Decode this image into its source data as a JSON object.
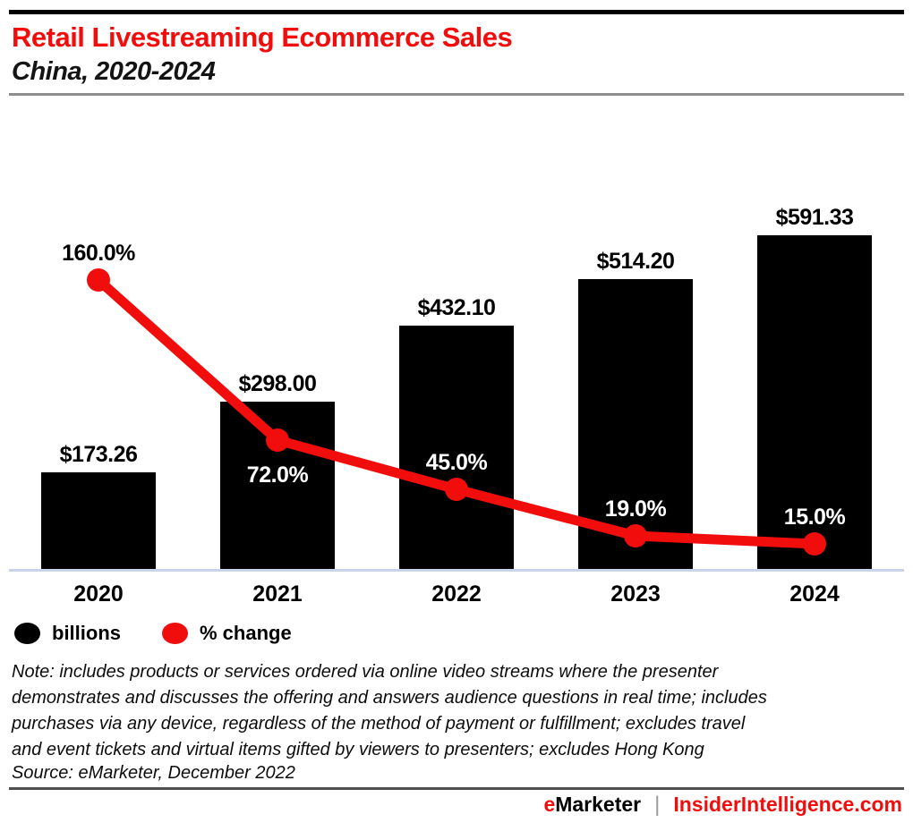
{
  "theme": {
    "accent_red": "#f20d0d",
    "axis_line_color": "#c8d4e8",
    "bar_color": "#000000"
  },
  "header": {
    "title": "Retail Livestreaming Ecommerce Sales",
    "subtitle": "China, 2020-2024"
  },
  "chart_data": {
    "type": "bar+line",
    "title": "Retail Livestreaming Ecommerce Sales",
    "subtitle": "China, 2020-2024",
    "categories": [
      "2020",
      "2021",
      "2022",
      "2023",
      "2024"
    ],
    "series": [
      {
        "name": "billions",
        "type": "bar",
        "color": "#000000",
        "values": [
          173.26,
          298.0,
          432.1,
          514.2,
          591.33
        ],
        "labels": [
          "$173.26",
          "$298.00",
          "$432.10",
          "$514.20",
          "$591.33"
        ]
      },
      {
        "name": "% change",
        "type": "line",
        "color": "#f20d0d",
        "values": [
          160.0,
          72.0,
          45.0,
          19.0,
          15.0
        ],
        "labels": [
          "160.0%",
          "72.0%",
          "45.0%",
          "19.0%",
          "15.0%"
        ],
        "label_placement": [
          "above",
          "below",
          "above",
          "above",
          "above"
        ],
        "label_colors": [
          "#000000",
          "#ffffff",
          "#ffffff",
          "#ffffff",
          "#ffffff"
        ]
      }
    ],
    "value_axis_visible": false,
    "grid": false,
    "baseline_axis": true,
    "legend_position": "bottom-left"
  },
  "legend": {
    "items": [
      {
        "label": "billions",
        "color": "#000000"
      },
      {
        "label": "% change",
        "color": "#f20d0d"
      }
    ]
  },
  "note": {
    "lines": [
      "Note: includes products or services ordered via online video streams where the presenter",
      "demonstrates and discusses the offering and answers audience questions in real time; includes",
      "purchases via any device, regardless of the method of payment or fulfillment; excludes travel",
      "and event tickets and virtual items gifted by viewers to presenters; excludes Hong Kong"
    ],
    "source": "Source: eMarketer, December 2022"
  },
  "footer": {
    "brand": "eMarketer",
    "divider": "|",
    "site": "InsiderIntelligence.com"
  }
}
